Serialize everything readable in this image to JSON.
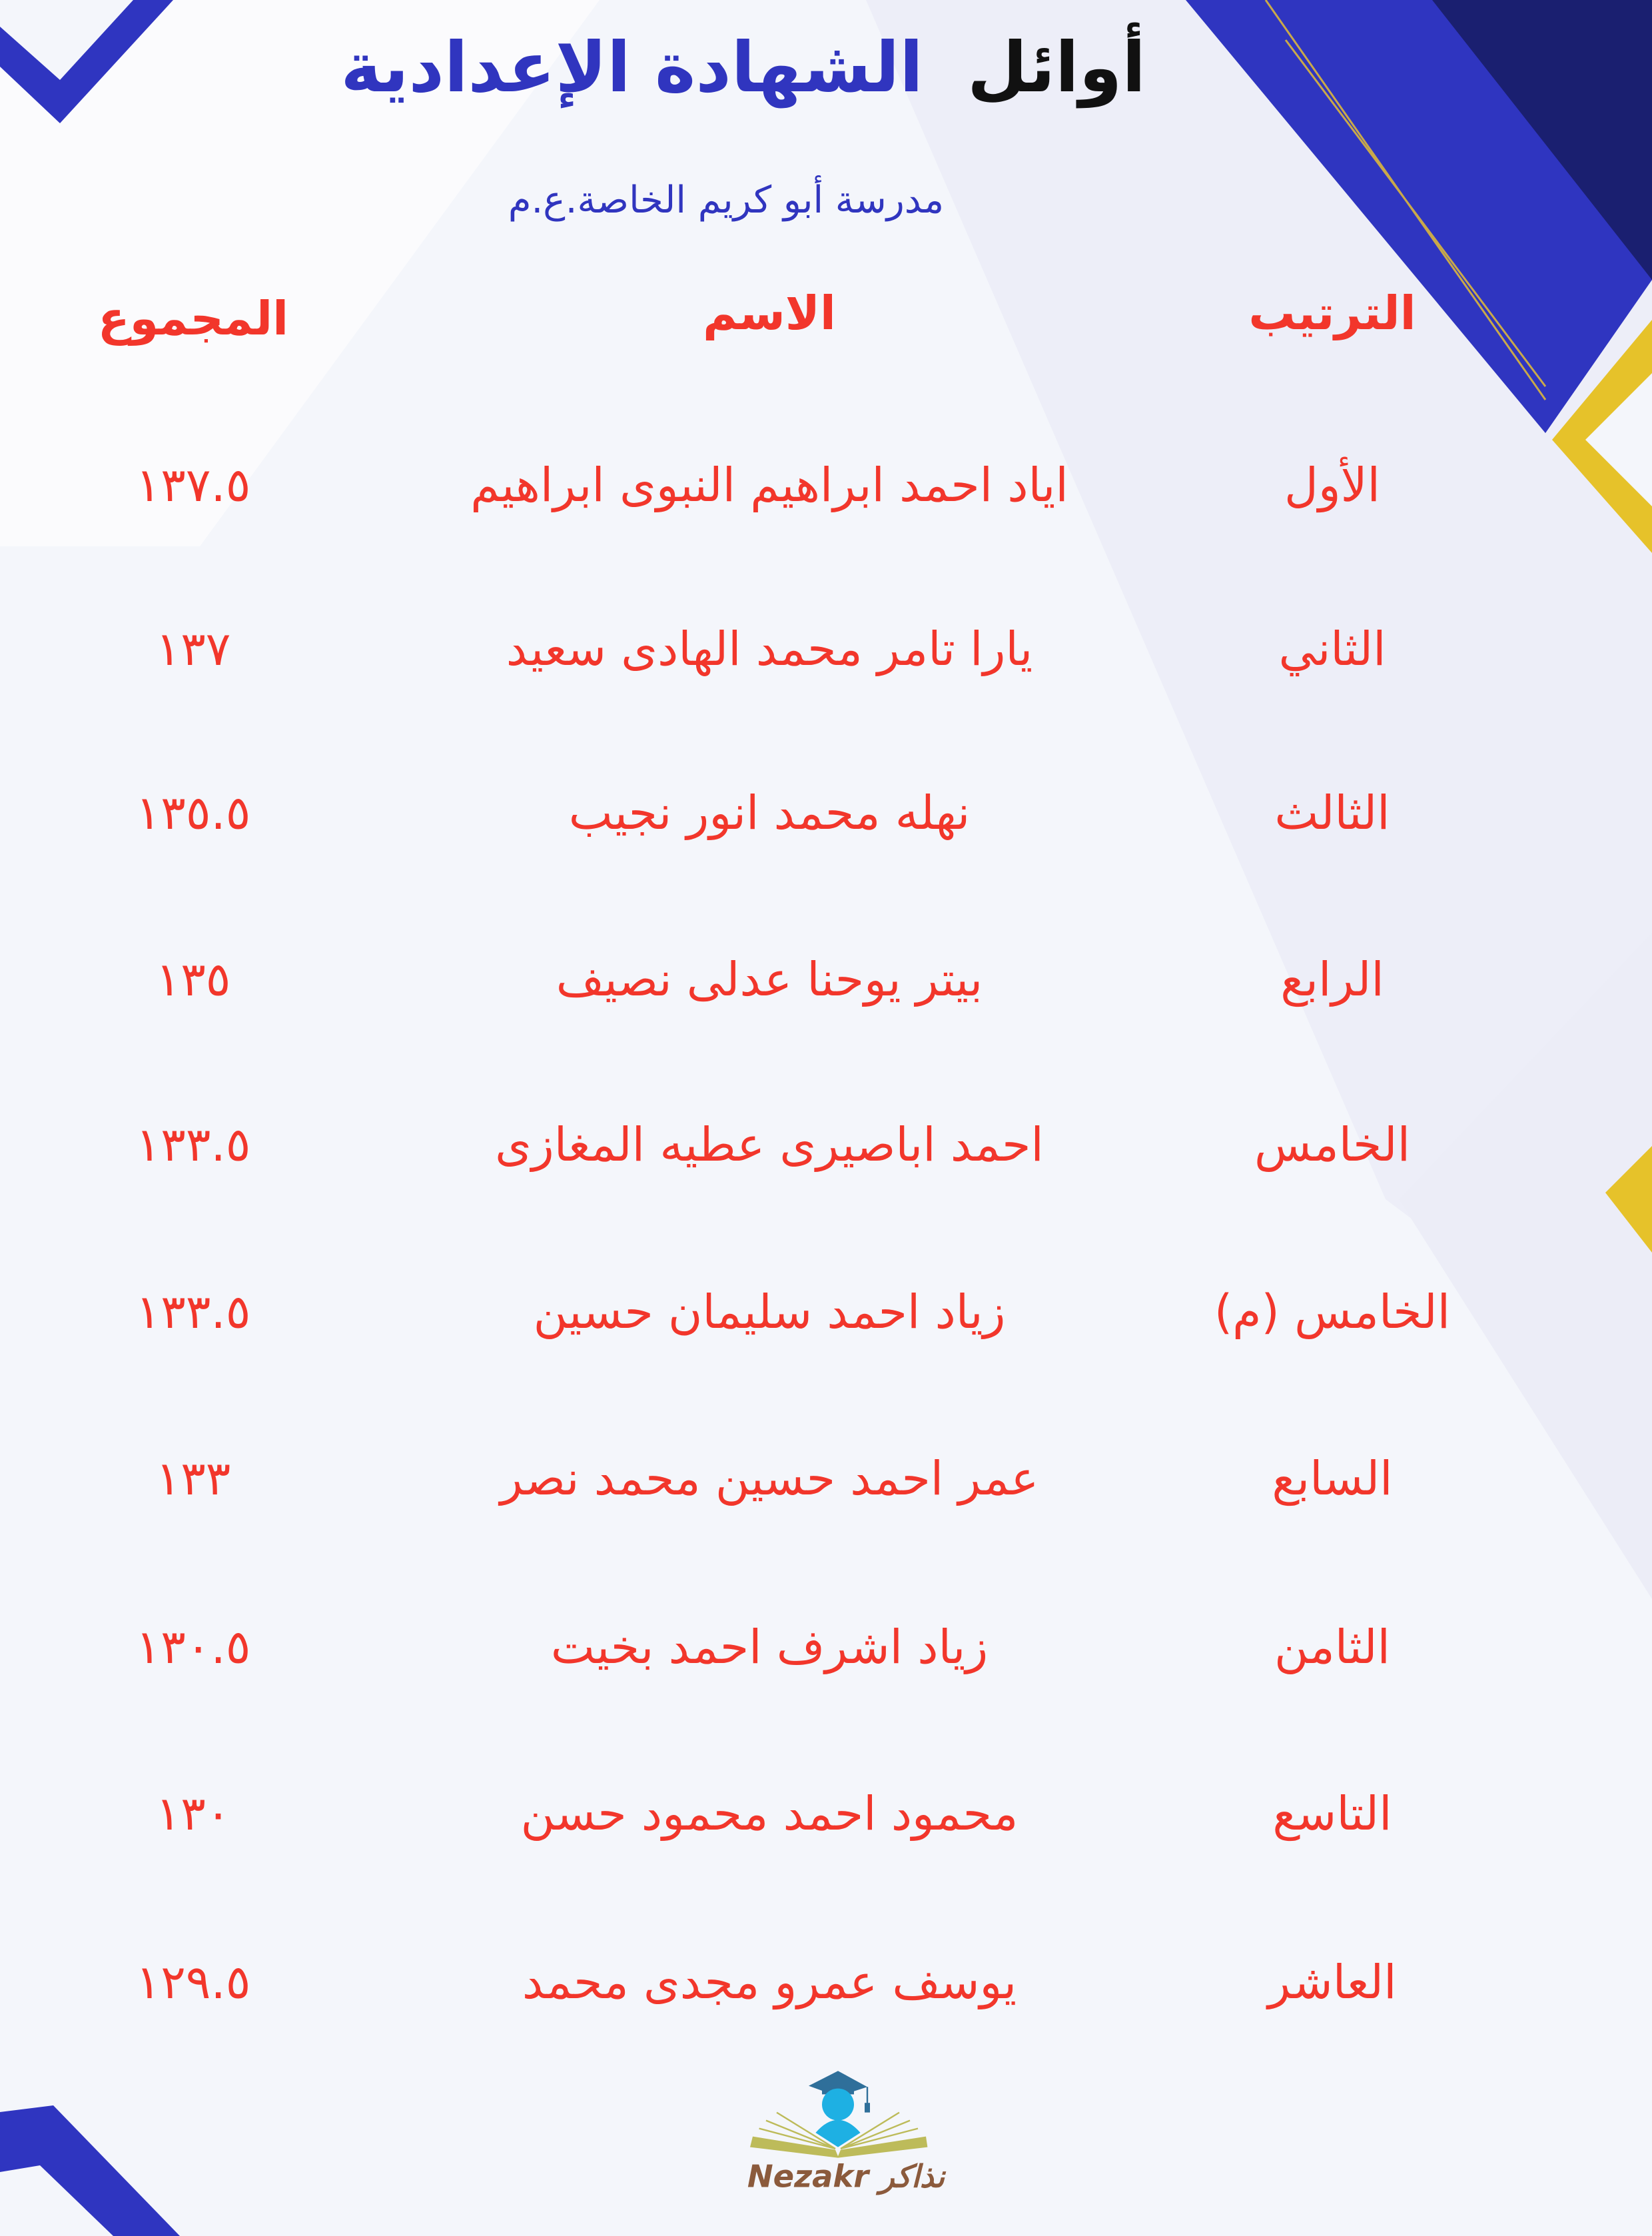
{
  "title": {
    "part1": "أوائل",
    "part2": "الشهادة الإعدادية"
  },
  "subtitle": "مدرسة أبو كريم الخاصة.ع.م",
  "colors": {
    "accent_blue": "#3035bf",
    "text_red": "#f2362b",
    "gold": "#e6c22a"
  },
  "table": {
    "headers": {
      "rank": "الترتيب",
      "name": "الاسم",
      "total": "المجموع"
    },
    "rows": [
      {
        "rank": "الأول",
        "name": "اياد احمد ابراهيم النبوى ابراهيم",
        "total": "١٣٧.٥"
      },
      {
        "rank": "الثاني",
        "name": "يارا تامر محمد الهادى سعيد",
        "total": "١٣٧"
      },
      {
        "rank": "الثالث",
        "name": "نهله محمد انور نجيب",
        "total": "١٣٥.٥"
      },
      {
        "rank": "الرابع",
        "name": "بيتر يوحنا عدلى نصيف",
        "total": "١٣٥"
      },
      {
        "rank": "الخامس",
        "name": "احمد اباصيرى عطيه المغازى",
        "total": "١٣٣.٥"
      },
      {
        "rank": "الخامس (م)",
        "name": "زياد احمد سليمان حسين",
        "total": "١٣٣.٥"
      },
      {
        "rank": "السابع",
        "name": "عمر احمد حسين محمد نصر",
        "total": "١٣٣"
      },
      {
        "rank": "الثامن",
        "name": "زياد اشرف احمد بخيت",
        "total": "١٣٠.٥"
      },
      {
        "rank": "التاسع",
        "name": "محمود احمد محمود حسن",
        "total": "١٣٠"
      },
      {
        "rank": "العاشر",
        "name": "يوسف عمرو مجدى محمد",
        "total": "١٢٩.٥"
      }
    ]
  },
  "logo": {
    "text_en": "Nezakr",
    "text_ar": "نذاكر"
  }
}
